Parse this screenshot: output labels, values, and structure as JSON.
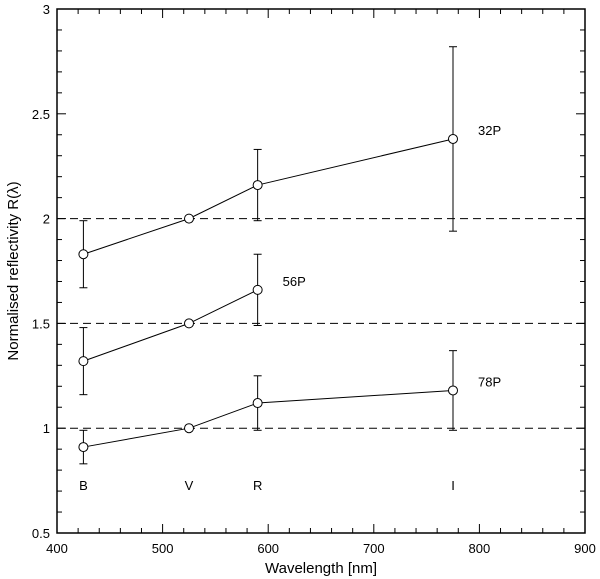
{
  "chart_data": {
    "type": "line",
    "xlabel": "Wavelength [nm]",
    "ylabel": "Normalised reflectivity R(λ)",
    "xlim": [
      400,
      900
    ],
    "ylim": [
      0.5,
      3
    ],
    "x_ticks": [
      "400",
      "500",
      "600",
      "700",
      "800",
      "900"
    ],
    "y_ticks": [
      "0.5",
      "1",
      "1.5",
      "2",
      "2.5",
      "3"
    ],
    "grid": false,
    "reference_lines": [
      1.0,
      1.5,
      2.0
    ],
    "band_labels": [
      {
        "label": "B",
        "x": 425
      },
      {
        "label": "V",
        "x": 525
      },
      {
        "label": "R",
        "x": 590
      },
      {
        "label": "I",
        "x": 775
      }
    ],
    "series": [
      {
        "name": "32P",
        "x": [
          425,
          525,
          590,
          775
        ],
        "y": [
          1.83,
          2.0,
          2.16,
          2.38
        ],
        "err": [
          0.16,
          0,
          0.17,
          0.44
        ]
      },
      {
        "name": "56P",
        "x": [
          425,
          525,
          590
        ],
        "y": [
          1.32,
          1.5,
          1.66
        ],
        "err": [
          0.16,
          0,
          0.17
        ]
      },
      {
        "name": "78P",
        "x": [
          425,
          525,
          590,
          775
        ],
        "y": [
          0.91,
          1.0,
          1.12,
          1.18
        ],
        "err": [
          0.08,
          0,
          0.13,
          0.19
        ]
      }
    ]
  }
}
